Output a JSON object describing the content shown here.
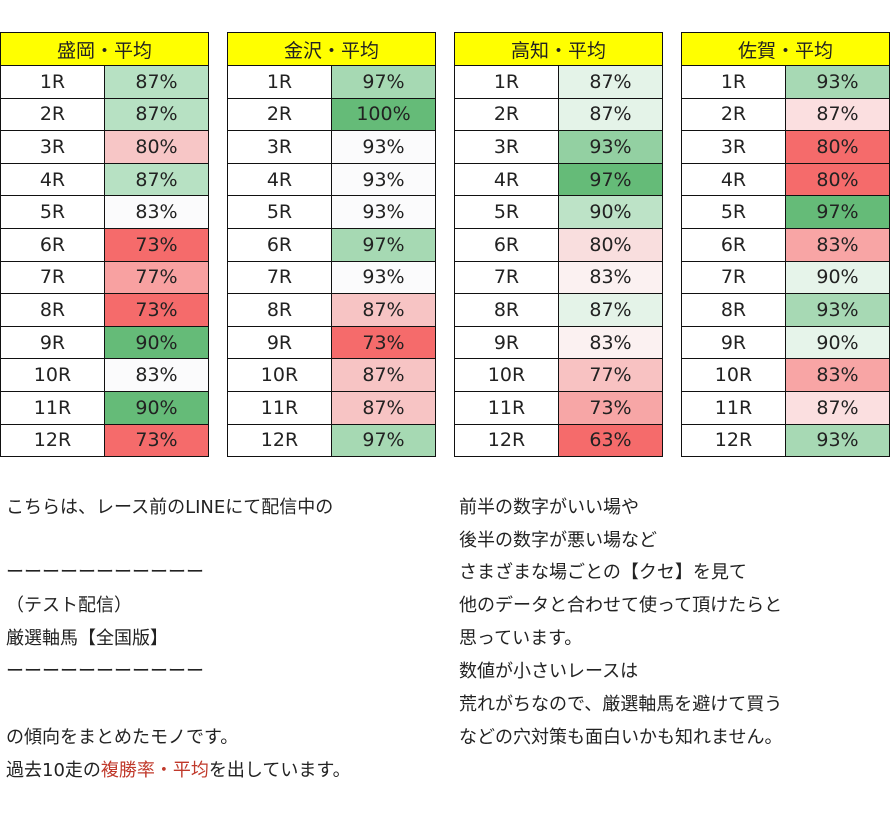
{
  "tables": [
    {
      "title": "盛岡・平均",
      "rows": [
        {
          "race": "1R",
          "value": "87%",
          "color": "#b7e1c3"
        },
        {
          "race": "2R",
          "value": "87%",
          "color": "#b7e1c3"
        },
        {
          "race": "3R",
          "value": "80%",
          "color": "#f7c6c6"
        },
        {
          "race": "4R",
          "value": "87%",
          "color": "#b7e1c3"
        },
        {
          "race": "5R",
          "value": "83%",
          "color": "#fbfbfc"
        },
        {
          "race": "6R",
          "value": "73%",
          "color": "#f56b6b"
        },
        {
          "race": "7R",
          "value": "77%",
          "color": "#f8a1a1"
        },
        {
          "race": "8R",
          "value": "73%",
          "color": "#f56b6b"
        },
        {
          "race": "9R",
          "value": "90%",
          "color": "#65bb78"
        },
        {
          "race": "10R",
          "value": "83%",
          "color": "#fbfbfc"
        },
        {
          "race": "11R",
          "value": "90%",
          "color": "#65bb78"
        },
        {
          "race": "12R",
          "value": "73%",
          "color": "#f56b6b"
        }
      ]
    },
    {
      "title": "金沢・平均",
      "rows": [
        {
          "race": "1R",
          "value": "97%",
          "color": "#a6d9b3"
        },
        {
          "race": "2R",
          "value": "100%",
          "color": "#65bb78"
        },
        {
          "race": "3R",
          "value": "93%",
          "color": "#fbfbfc"
        },
        {
          "race": "4R",
          "value": "93%",
          "color": "#fbfbfc"
        },
        {
          "race": "5R",
          "value": "93%",
          "color": "#fbfbfc"
        },
        {
          "race": "6R",
          "value": "97%",
          "color": "#a6d9b3"
        },
        {
          "race": "7R",
          "value": "93%",
          "color": "#fbfbfc"
        },
        {
          "race": "8R",
          "value": "87%",
          "color": "#f7c4c4"
        },
        {
          "race": "9R",
          "value": "73%",
          "color": "#f56b6b"
        },
        {
          "race": "10R",
          "value": "87%",
          "color": "#f7c4c4"
        },
        {
          "race": "11R",
          "value": "87%",
          "color": "#f7c4c4"
        },
        {
          "race": "12R",
          "value": "97%",
          "color": "#a6d9b3"
        }
      ]
    },
    {
      "title": "高知・平均",
      "rows": [
        {
          "race": "1R",
          "value": "87%",
          "color": "#e4f3e8"
        },
        {
          "race": "2R",
          "value": "87%",
          "color": "#e4f3e8"
        },
        {
          "race": "3R",
          "value": "93%",
          "color": "#93d0a2"
        },
        {
          "race": "4R",
          "value": "97%",
          "color": "#65bb78"
        },
        {
          "race": "5R",
          "value": "90%",
          "color": "#bde3c7"
        },
        {
          "race": "6R",
          "value": "80%",
          "color": "#f9dede"
        },
        {
          "race": "7R",
          "value": "83%",
          "color": "#fbf1f1"
        },
        {
          "race": "8R",
          "value": "87%",
          "color": "#e4f3e8"
        },
        {
          "race": "9R",
          "value": "83%",
          "color": "#fbf1f1"
        },
        {
          "race": "10R",
          "value": "77%",
          "color": "#f8c2c2"
        },
        {
          "race": "11R",
          "value": "73%",
          "color": "#f7a6a6"
        },
        {
          "race": "12R",
          "value": "63%",
          "color": "#f56b6b"
        }
      ]
    },
    {
      "title": "佐賀・平均",
      "rows": [
        {
          "race": "1R",
          "value": "93%",
          "color": "#a7d9b4"
        },
        {
          "race": "2R",
          "value": "87%",
          "color": "#fbdfe0"
        },
        {
          "race": "3R",
          "value": "80%",
          "color": "#f56b6b"
        },
        {
          "race": "4R",
          "value": "80%",
          "color": "#f56b6b"
        },
        {
          "race": "5R",
          "value": "97%",
          "color": "#65bb78"
        },
        {
          "race": "6R",
          "value": "83%",
          "color": "#f8a5a5"
        },
        {
          "race": "7R",
          "value": "90%",
          "color": "#e6f4ea"
        },
        {
          "race": "8R",
          "value": "93%",
          "color": "#a7d9b4"
        },
        {
          "race": "9R",
          "value": "90%",
          "color": "#e6f4ea"
        },
        {
          "race": "10R",
          "value": "83%",
          "color": "#f8a5a5"
        },
        {
          "race": "11R",
          "value": "87%",
          "color": "#fbdfe0"
        },
        {
          "race": "12R",
          "value": "93%",
          "color": "#a7d9b4"
        }
      ]
    }
  ],
  "left_text": {
    "line1": "こちらは、レース前のLINEにて配信中の",
    "line2": "ーーーーーーーーーーー",
    "line3": "（テスト配信）",
    "line4": "厳選軸馬【全国版】",
    "line5": "ーーーーーーーーーーー",
    "line6": "の傾向をまとめたモノです。",
    "line7_pre": "過去10走の",
    "line7_highlight": "複勝率・平均",
    "line7_post": "を出しています。"
  },
  "right_text": {
    "line1": "前半の数字がいい場や",
    "line2": "後半の数字が悪い場など",
    "line3": "さまざまな場ごとの【クセ】を見て",
    "line4": "他のデータと合わせて使って頂けたらと",
    "line5": "思っています。",
    "line6": "数値が小さいレースは",
    "line7": "荒れがちなので、厳選軸馬を避けて買う",
    "line8": "などの穴対策も面白いかも知れません。"
  },
  "highlight_color": "#c0392b"
}
